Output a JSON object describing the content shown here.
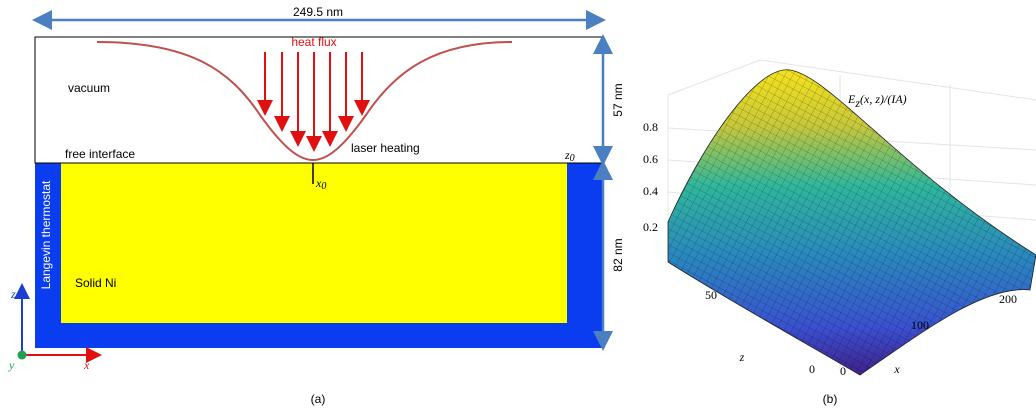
{
  "panel_a": {
    "width_label": "249.5 nm",
    "heat_flux": "heat flux",
    "vacuum": "vacuum",
    "free_interface": "free interface",
    "laser_heating": "laser heating",
    "z0": {
      "main": "z",
      "sub": "0"
    },
    "x0": {
      "main": "x",
      "sub": "0"
    },
    "height_vacuum": "57 nm",
    "height_solid": "82 nm",
    "thermostat": "Langevin thermostat",
    "solid": "Solid Ni",
    "axes": {
      "z": "z",
      "x": "x",
      "y": "y"
    },
    "caption": "(a)"
  },
  "panel_b": {
    "title": {
      "main": "E",
      "sub": "z",
      "rest": "(x, z)/(IA)"
    },
    "value_ticks": [
      0.2,
      0.4,
      0.6,
      0.8
    ],
    "z_ticks": [
      0,
      50
    ],
    "x_ticks": [
      0,
      100,
      200
    ],
    "z_label": "z",
    "x_label": "x",
    "caption": "(b)"
  }
}
